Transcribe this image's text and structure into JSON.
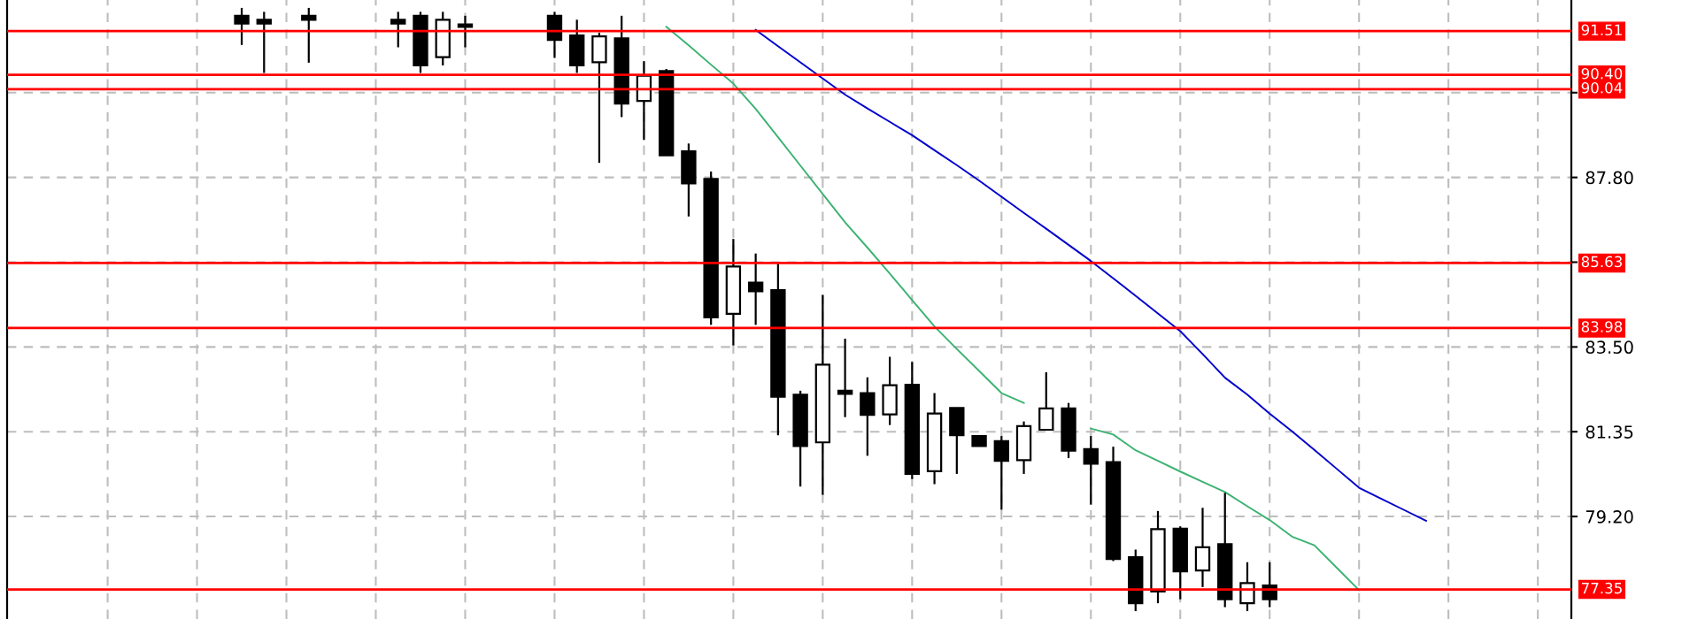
{
  "chart_data": {
    "type": "candlestick",
    "categories": [
      null,
      null,
      null,
      null,
      null,
      null,
      null,
      null,
      null,
      null,
      null,
      null,
      null,
      null,
      null,
      null,
      null,
      null,
      null,
      null,
      null,
      null,
      null,
      null,
      null,
      null,
      null,
      null,
      null,
      null,
      null,
      null,
      null,
      null,
      null,
      null,
      null,
      null,
      null,
      null,
      null,
      null,
      null,
      null,
      null,
      null,
      null,
      null,
      null,
      null,
      null,
      null,
      null,
      null,
      null,
      null,
      null,
      null,
      null,
      null,
      null,
      null,
      null,
      null,
      null,
      null,
      null,
      null,
      null,
      null
    ],
    "ohlc": [
      null,
      null,
      null,
      null,
      null,
      null,
      null,
      null,
      null,
      null,
      [
        91.9,
        92.1,
        91.16,
        91.7
      ],
      [
        91.8,
        92.0,
        90.45,
        91.7
      ],
      null,
      [
        91.9,
        92.1,
        90.71,
        91.8
      ],
      null,
      null,
      null,
      [
        91.8,
        92.0,
        91.1,
        91.7
      ],
      [
        91.9,
        92.0,
        90.45,
        90.64
      ],
      [
        90.85,
        92.0,
        90.64,
        91.8
      ],
      [
        91.68,
        91.9,
        91.1,
        91.62
      ],
      null,
      null,
      null,
      [
        91.9,
        92.0,
        90.83,
        91.29
      ],
      [
        91.4,
        91.8,
        90.45,
        90.64
      ],
      [
        90.72,
        91.47,
        88.17,
        91.38
      ],
      [
        91.33,
        91.9,
        89.33,
        89.67
      ],
      [
        89.74,
        90.75,
        88.75,
        90.38
      ],
      [
        90.5,
        90.55,
        88.36,
        88.36
      ],
      [
        88.46,
        88.66,
        86.81,
        87.65
      ],
      [
        87.76,
        87.95,
        84.06,
        84.25
      ],
      [
        84.34,
        86.24,
        83.54,
        85.54
      ],
      [
        85.13,
        85.87,
        84.06,
        84.91
      ],
      [
        84.94,
        85.61,
        81.26,
        82.24
      ],
      [
        82.29,
        82.39,
        79.96,
        80.99
      ],
      [
        81.08,
        84.82,
        79.75,
        83.05
      ],
      [
        82.39,
        83.71,
        81.72,
        82.31
      ],
      [
        82.33,
        82.73,
        80.74,
        81.78
      ],
      [
        81.79,
        83.25,
        81.52,
        82.53
      ],
      [
        82.54,
        83.12,
        80.15,
        80.28
      ],
      [
        80.35,
        82.33,
        80.02,
        81.81
      ],
      [
        81.95,
        81.95,
        80.28,
        81.26
      ],
      [
        81.24,
        81.24,
        80.99,
        80.99
      ],
      [
        81.11,
        81.24,
        79.37,
        80.61
      ],
      [
        80.63,
        81.61,
        80.28,
        81.49
      ],
      [
        81.4,
        82.86,
        81.4,
        81.94
      ],
      [
        81.94,
        82.08,
        80.68,
        80.87
      ],
      [
        80.91,
        81.24,
        79.5,
        80.54
      ],
      [
        80.58,
        80.97,
        78.07,
        78.12
      ],
      [
        78.17,
        78.36,
        76.8,
        77.0
      ],
      [
        77.3,
        79.34,
        77.0,
        78.88
      ],
      [
        78.89,
        78.95,
        77.1,
        77.81
      ],
      [
        77.83,
        79.42,
        77.41,
        78.42
      ],
      [
        78.5,
        79.8,
        76.9,
        77.1
      ],
      [
        77.0,
        78.04,
        76.8,
        77.51
      ],
      [
        77.45,
        78.04,
        76.9,
        77.1
      ],
      null,
      null,
      null,
      null,
      null,
      null,
      null,
      null,
      null,
      null,
      null,
      null,
      null
    ],
    "series": [
      {
        "type": "line",
        "color": "#3cb371",
        "values": [
          null,
          null,
          null,
          null,
          null,
          null,
          null,
          null,
          null,
          null,
          null,
          null,
          null,
          null,
          null,
          null,
          null,
          null,
          null,
          null,
          null,
          null,
          null,
          null,
          null,
          null,
          null,
          null,
          null,
          91.62,
          91.15,
          90.66,
          90.18,
          89.54,
          88.82,
          88.1,
          87.38,
          86.66,
          86.02,
          85.36,
          84.69,
          84.02,
          83.45,
          82.89,
          82.33,
          82.08,
          null,
          null,
          81.43,
          81.28,
          80.88,
          80.61,
          80.34,
          80.08,
          79.82,
          79.46,
          79.11,
          78.69,
          78.47,
          77.9,
          77.33,
          null,
          null,
          null,
          null,
          null,
          null,
          null,
          null,
          null
        ]
      },
      {
        "type": "line",
        "color": "#0000cd",
        "values": [
          null,
          null,
          null,
          null,
          null,
          null,
          null,
          null,
          null,
          null,
          null,
          null,
          null,
          null,
          null,
          null,
          null,
          null,
          null,
          null,
          null,
          null,
          null,
          null,
          null,
          null,
          null,
          null,
          null,
          null,
          null,
          null,
          null,
          91.54,
          91.13,
          90.72,
          90.31,
          89.9,
          89.55,
          89.21,
          88.87,
          88.49,
          88.11,
          87.72,
          87.31,
          86.9,
          86.5,
          86.09,
          85.68,
          85.24,
          84.8,
          84.35,
          83.9,
          83.32,
          82.72,
          82.29,
          81.81,
          81.36,
          80.89,
          80.41,
          79.93,
          79.65,
          79.37,
          79.09,
          null,
          null,
          null,
          null,
          null,
          null
        ]
      }
    ],
    "ylim": [
      76.6,
      92.3
    ],
    "yticks": [
      {
        "value": 79.2,
        "label": "79.20"
      },
      {
        "value": 81.35,
        "label": "81.35"
      },
      {
        "value": 83.5,
        "label": "83.50"
      },
      {
        "value": 85.65,
        "label": null
      },
      {
        "value": 87.8,
        "label": "87.80"
      },
      {
        "value": 89.95,
        "label": null
      }
    ],
    "tick_labels": "y",
    "grid": true,
    "ref_lines": [
      {
        "axis": "y",
        "value": 91.51,
        "label": "91.51",
        "color": "#ff0000"
      },
      {
        "axis": "y",
        "value": 90.4,
        "label": "90.40",
        "color": "#ff0000"
      },
      {
        "axis": "y",
        "value": 90.04,
        "label": "90.04",
        "color": "#ff0000"
      },
      {
        "axis": "y",
        "value": 85.63,
        "label": "85.63",
        "color": "#ff0000"
      },
      {
        "axis": "y",
        "value": 83.98,
        "label": "83.98",
        "color": "#ff0000"
      },
      {
        "axis": "y",
        "value": 77.35,
        "label": "77.35",
        "color": "#ff0000"
      }
    ]
  }
}
